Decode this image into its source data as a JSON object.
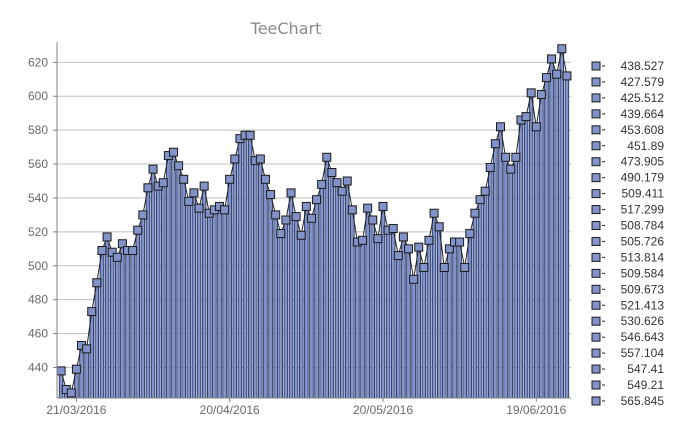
{
  "colors": {
    "bar_fill": "#8193c8",
    "bar_stroke": "#1b2a5a",
    "marker_fill": "#8193c8",
    "marker_stroke": "#1a1a1a",
    "line": "#222222",
    "grid": "#c0c0c0",
    "axis": "#808080"
  },
  "chart_data": {
    "type": "bar",
    "title": "TeeChart",
    "grid": true,
    "legend_position": "right",
    "ylim": [
      422,
      632
    ],
    "y_ticks": [
      440,
      460,
      480,
      500,
      520,
      540,
      560,
      580,
      600,
      620
    ],
    "x_tick_labels": [
      {
        "label": "21/03/2016",
        "index": 3
      },
      {
        "label": "20/04/2016",
        "index": 33
      },
      {
        "label": "20/05/2016",
        "index": 63
      },
      {
        "label": "19/06/2016",
        "index": 93
      }
    ],
    "values": [
      438,
      427,
      425,
      439,
      453,
      451,
      473,
      490,
      509,
      517,
      508,
      505,
      513,
      509,
      509,
      521,
      530,
      546,
      557,
      547,
      549,
      565,
      567,
      559,
      551,
      538,
      543,
      534,
      547,
      531,
      533,
      535,
      533,
      551,
      563,
      575,
      577,
      577,
      562,
      563,
      551,
      542,
      530,
      519,
      527,
      543,
      529,
      518,
      535,
      528,
      539,
      548,
      564,
      555,
      549,
      544,
      550,
      533,
      514,
      515,
      534,
      527,
      516,
      535,
      521,
      522,
      506,
      517,
      510,
      492,
      511,
      499,
      515,
      531,
      523,
      499,
      510,
      514,
      514,
      499,
      519,
      531,
      539,
      544,
      558,
      572,
      582,
      564,
      557,
      564,
      586,
      588,
      602,
      582,
      601,
      611,
      622,
      613,
      628,
      612
    ],
    "legend": [
      "438.527",
      "427.579",
      "425.512",
      "439.664",
      "453.608",
      "451.89",
      "473.905",
      "490.179",
      "509.411",
      "517.299",
      "508.784",
      "505.726",
      "513.814",
      "509.584",
      "509.673",
      "521.413",
      "530.626",
      "546.643",
      "557.104",
      "547.41",
      "549.21",
      "565.845"
    ]
  }
}
